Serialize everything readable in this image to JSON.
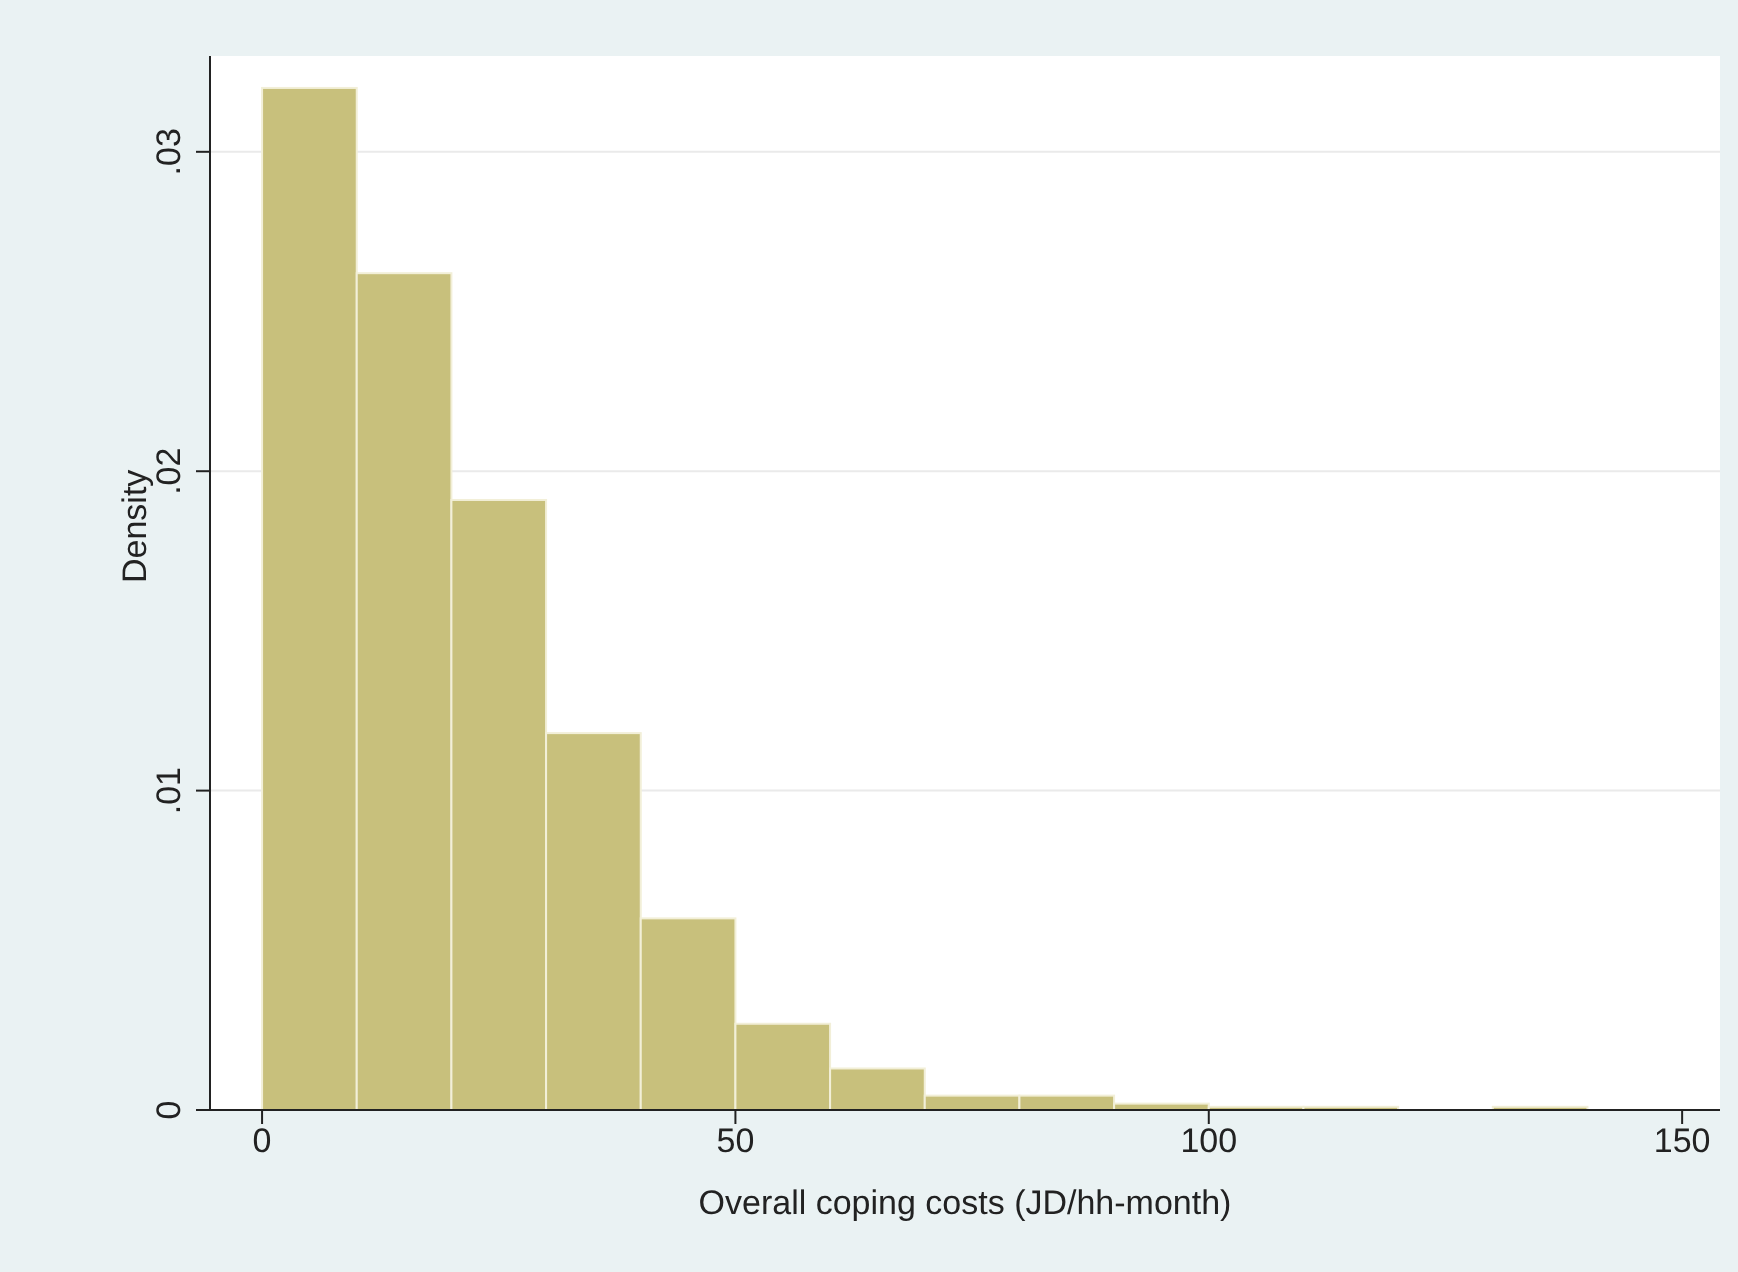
{
  "chart_data": {
    "type": "histogram",
    "xlabel": "Overall coping costs (JD/hh-month)",
    "ylabel": "Density",
    "bins": [
      0,
      10,
      20,
      30,
      40,
      50,
      60,
      70,
      80,
      90,
      100,
      110,
      120,
      130,
      140
    ],
    "values": [
      0.032,
      0.0262,
      0.0191,
      0.0118,
      0.006,
      0.0027,
      0.0013,
      0.00045,
      0.00045,
      0.0002,
      0.0001,
      0.0001,
      0,
      0.0001
    ],
    "color": "#c8c07c",
    "xlim": [
      -5.5,
      154
    ],
    "xticks": [
      0,
      50,
      100,
      150
    ],
    "ylim": [
      0,
      0.033
    ],
    "yticks": [
      0,
      {
        "value": 0.01,
        "label": ".01"
      },
      {
        "value": 0.02,
        "label": ".02"
      },
      {
        "value": 0.03,
        "label": ".03"
      }
    ],
    "grid": "y"
  }
}
